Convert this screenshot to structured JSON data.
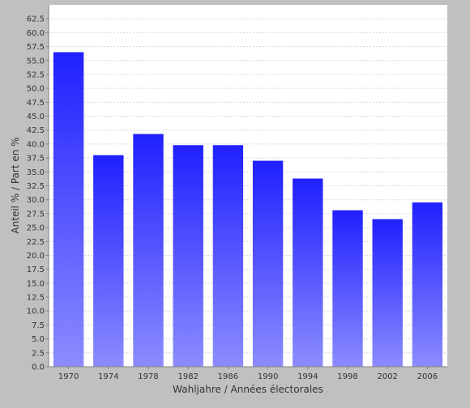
{
  "chart_data": {
    "type": "bar",
    "title": "",
    "xlabel": "Wahljahre / Années électorales",
    "ylabel": "Anteil % / Part en %",
    "categories": [
      "1970",
      "1974",
      "1978",
      "1982",
      "1986",
      "1990",
      "1994",
      "1998",
      "2002",
      "2006"
    ],
    "values": [
      56.5,
      38.0,
      41.8,
      39.8,
      39.8,
      37.0,
      33.8,
      28.1,
      26.5,
      29.5
    ],
    "ylim": [
      0,
      65
    ],
    "ytick_step": 2.5,
    "grid": true,
    "legend": "none",
    "colors": {
      "bar_top": "#2020ff",
      "bar_bottom": "#8c8cff",
      "plot_background": "#ffffff",
      "page_background": "#c0c0c0",
      "gridline": "#d8d8d8"
    }
  }
}
